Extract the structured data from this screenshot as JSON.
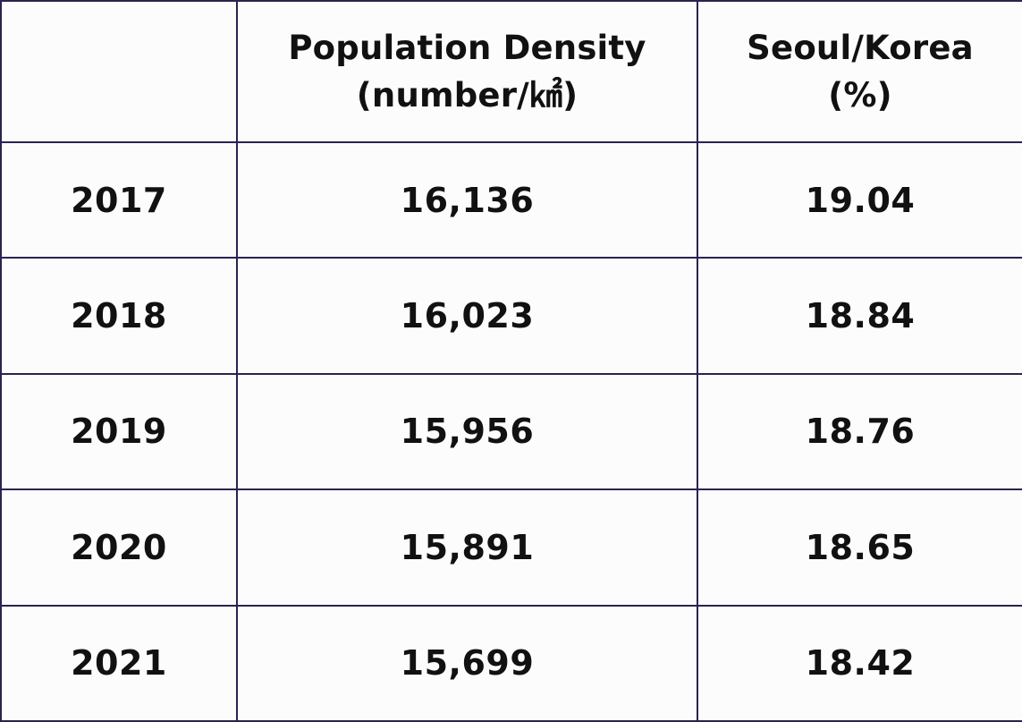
{
  "chart_data": {
    "type": "table",
    "columns": [
      "",
      "Population Density (number/㎢)",
      "Seoul/Korea (%)"
    ],
    "header": {
      "year": "",
      "density_line1": "Population Density",
      "density_line2": "(number/㎢)",
      "ratio_line1": "Seoul/Korea",
      "ratio_line2": "(%)"
    },
    "rows": [
      {
        "year": "2017",
        "density": "16,136",
        "ratio": "19.04"
      },
      {
        "year": "2018",
        "density": "16,023",
        "ratio": "18.84"
      },
      {
        "year": "2019",
        "density": "15,956",
        "ratio": "18.76"
      },
      {
        "year": "2020",
        "density": "15,891",
        "ratio": "18.65"
      },
      {
        "year": "2021",
        "density": "15,699",
        "ratio": "18.42"
      }
    ]
  }
}
